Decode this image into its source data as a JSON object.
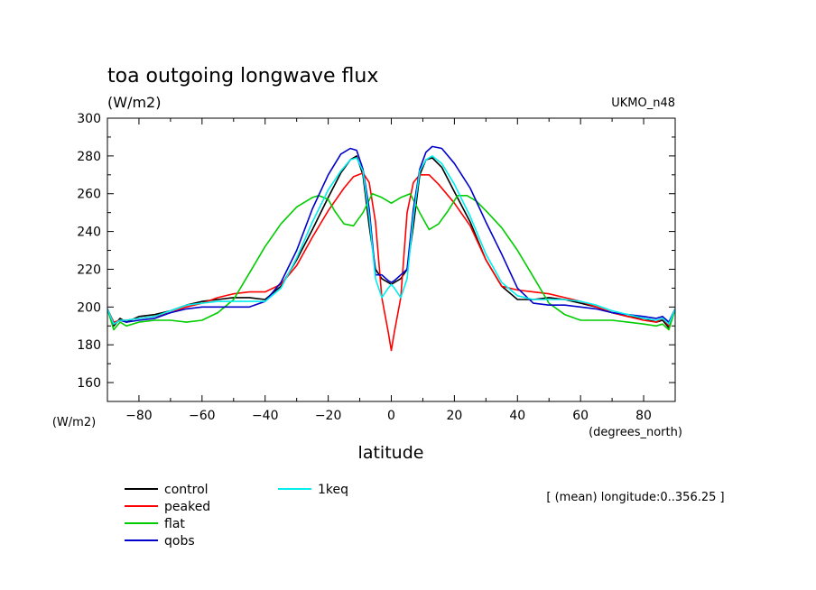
{
  "chart_data": {
    "type": "line",
    "title": "toa outgoing longwave flux",
    "units_label": "(W/m2)",
    "model_label": "UKMO_n48",
    "ylabel": "(W/m2)",
    "xlabel": "latitude",
    "x_units": "(degrees_north)",
    "footnote": "[ (mean) longitude:0..356.25 ]",
    "xlim": [
      -90,
      90
    ],
    "ylim": [
      150,
      300
    ],
    "xticks": [
      -80,
      -60,
      -40,
      -20,
      0,
      20,
      40,
      60,
      80
    ],
    "yticks": [
      160,
      180,
      200,
      220,
      240,
      260,
      280,
      300
    ],
    "grid": false,
    "legend_position": "bottom-left",
    "series": [
      {
        "name": "control",
        "color": "#000000",
        "points": [
          [
            -90,
            199
          ],
          [
            -88,
            190
          ],
          [
            -86,
            194
          ],
          [
            -84,
            192
          ],
          [
            -80,
            195
          ],
          [
            -75,
            196
          ],
          [
            -70,
            198
          ],
          [
            -65,
            201
          ],
          [
            -60,
            203
          ],
          [
            -55,
            204
          ],
          [
            -50,
            205
          ],
          [
            -45,
            205
          ],
          [
            -40,
            204
          ],
          [
            -35,
            211
          ],
          [
            -30,
            225
          ],
          [
            -25,
            241
          ],
          [
            -20,
            258
          ],
          [
            -16,
            271
          ],
          [
            -13,
            278
          ],
          [
            -11,
            280
          ],
          [
            -9,
            270
          ],
          [
            -7,
            243
          ],
          [
            -5,
            220
          ],
          [
            -3,
            215
          ],
          [
            -1,
            213
          ],
          [
            0,
            212
          ],
          [
            1,
            213
          ],
          [
            3,
            215
          ],
          [
            5,
            220
          ],
          [
            7,
            243
          ],
          [
            9,
            270
          ],
          [
            11,
            278
          ],
          [
            13,
            279
          ],
          [
            16,
            274
          ],
          [
            20,
            261
          ],
          [
            25,
            245
          ],
          [
            30,
            225
          ],
          [
            35,
            211
          ],
          [
            40,
            204
          ],
          [
            45,
            204
          ],
          [
            50,
            205
          ],
          [
            55,
            204
          ],
          [
            60,
            202
          ],
          [
            65,
            200
          ],
          [
            70,
            197
          ],
          [
            75,
            195
          ],
          [
            80,
            194
          ],
          [
            84,
            192
          ],
          [
            86,
            193
          ],
          [
            88,
            189
          ],
          [
            90,
            199
          ]
        ]
      },
      {
        "name": "peaked",
        "color": "#ff0000",
        "points": [
          [
            -90,
            199
          ],
          [
            -88,
            192
          ],
          [
            -86,
            193
          ],
          [
            -84,
            193
          ],
          [
            -80,
            194
          ],
          [
            -75,
            195
          ],
          [
            -70,
            197
          ],
          [
            -65,
            200
          ],
          [
            -60,
            202
          ],
          [
            -55,
            205
          ],
          [
            -50,
            207
          ],
          [
            -45,
            208
          ],
          [
            -40,
            208
          ],
          [
            -35,
            212
          ],
          [
            -30,
            222
          ],
          [
            -25,
            237
          ],
          [
            -20,
            251
          ],
          [
            -15,
            263
          ],
          [
            -12,
            269
          ],
          [
            -9,
            271
          ],
          [
            -7,
            266
          ],
          [
            -5,
            245
          ],
          [
            -3,
            205
          ],
          [
            -1,
            187
          ],
          [
            0,
            177
          ],
          [
            1,
            187
          ],
          [
            3,
            205
          ],
          [
            5,
            250
          ],
          [
            7,
            266
          ],
          [
            9,
            270
          ],
          [
            12,
            270
          ],
          [
            15,
            265
          ],
          [
            20,
            255
          ],
          [
            25,
            243
          ],
          [
            30,
            225
          ],
          [
            35,
            211
          ],
          [
            40,
            209
          ],
          [
            45,
            208
          ],
          [
            50,
            207
          ],
          [
            55,
            205
          ],
          [
            60,
            203
          ],
          [
            65,
            200
          ],
          [
            70,
            197
          ],
          [
            75,
            195
          ],
          [
            80,
            193
          ],
          [
            84,
            192
          ],
          [
            86,
            194
          ],
          [
            88,
            190
          ],
          [
            90,
            199
          ]
        ]
      },
      {
        "name": "flat",
        "color": "#00cc00",
        "points": [
          [
            -90,
            199
          ],
          [
            -88,
            188
          ],
          [
            -86,
            192
          ],
          [
            -84,
            190
          ],
          [
            -80,
            192
          ],
          [
            -75,
            193
          ],
          [
            -70,
            193
          ],
          [
            -65,
            192
          ],
          [
            -60,
            193
          ],
          [
            -55,
            197
          ],
          [
            -50,
            204
          ],
          [
            -45,
            218
          ],
          [
            -40,
            232
          ],
          [
            -35,
            244
          ],
          [
            -30,
            253
          ],
          [
            -25,
            258
          ],
          [
            -23,
            259
          ],
          [
            -20,
            257
          ],
          [
            -18,
            251
          ],
          [
            -15,
            244
          ],
          [
            -12,
            243
          ],
          [
            -9,
            250
          ],
          [
            -6,
            260
          ],
          [
            -3,
            258
          ],
          [
            0,
            255
          ],
          [
            3,
            258
          ],
          [
            6,
            260
          ],
          [
            9,
            250
          ],
          [
            12,
            241
          ],
          [
            15,
            244
          ],
          [
            18,
            251
          ],
          [
            21,
            259
          ],
          [
            24,
            259
          ],
          [
            27,
            256
          ],
          [
            30,
            251
          ],
          [
            35,
            242
          ],
          [
            40,
            230
          ],
          [
            45,
            216
          ],
          [
            50,
            202
          ],
          [
            55,
            196
          ],
          [
            60,
            193
          ],
          [
            65,
            193
          ],
          [
            70,
            193
          ],
          [
            75,
            192
          ],
          [
            80,
            191
          ],
          [
            84,
            190
          ],
          [
            86,
            191
          ],
          [
            88,
            188
          ],
          [
            90,
            199
          ]
        ]
      },
      {
        "name": "qobs",
        "color": "#0000cc",
        "points": [
          [
            -90,
            199
          ],
          [
            -88,
            191
          ],
          [
            -86,
            193
          ],
          [
            -84,
            192
          ],
          [
            -80,
            193
          ],
          [
            -75,
            194
          ],
          [
            -70,
            197
          ],
          [
            -65,
            199
          ],
          [
            -60,
            200
          ],
          [
            -55,
            200
          ],
          [
            -50,
            200
          ],
          [
            -45,
            200
          ],
          [
            -40,
            203
          ],
          [
            -35,
            213
          ],
          [
            -30,
            230
          ],
          [
            -25,
            252
          ],
          [
            -20,
            270
          ],
          [
            -16,
            281
          ],
          [
            -13,
            284
          ],
          [
            -11,
            283
          ],
          [
            -9,
            273
          ],
          [
            -7,
            252
          ],
          [
            -5,
            217
          ],
          [
            -3,
            217
          ],
          [
            -1,
            214
          ],
          [
            0,
            213
          ],
          [
            1,
            214
          ],
          [
            3,
            217
          ],
          [
            5,
            220
          ],
          [
            7,
            252
          ],
          [
            9,
            273
          ],
          [
            11,
            282
          ],
          [
            13,
            285
          ],
          [
            16,
            284
          ],
          [
            20,
            276
          ],
          [
            25,
            263
          ],
          [
            30,
            245
          ],
          [
            35,
            228
          ],
          [
            40,
            210
          ],
          [
            45,
            202
          ],
          [
            50,
            201
          ],
          [
            55,
            201
          ],
          [
            60,
            200
          ],
          [
            65,
            199
          ],
          [
            70,
            197
          ],
          [
            75,
            196
          ],
          [
            80,
            195
          ],
          [
            84,
            194
          ],
          [
            86,
            195
          ],
          [
            88,
            192
          ],
          [
            90,
            199
          ]
        ]
      },
      {
        "name": "1keq",
        "color": "#00eeee",
        "points": [
          [
            -90,
            199
          ],
          [
            -88,
            191
          ],
          [
            -86,
            193
          ],
          [
            -84,
            193
          ],
          [
            -80,
            194
          ],
          [
            -75,
            195
          ],
          [
            -70,
            198
          ],
          [
            -65,
            201
          ],
          [
            -60,
            202
          ],
          [
            -55,
            203
          ],
          [
            -50,
            203
          ],
          [
            -45,
            203
          ],
          [
            -40,
            203
          ],
          [
            -35,
            210
          ],
          [
            -30,
            226
          ],
          [
            -25,
            245
          ],
          [
            -20,
            262
          ],
          [
            -16,
            272
          ],
          [
            -13,
            278
          ],
          [
            -11,
            279
          ],
          [
            -9,
            272
          ],
          [
            -7,
            248
          ],
          [
            -5,
            215
          ],
          [
            -3,
            205
          ],
          [
            -1,
            210
          ],
          [
            0,
            212
          ],
          [
            1,
            210
          ],
          [
            3,
            205
          ],
          [
            5,
            215
          ],
          [
            7,
            248
          ],
          [
            9,
            272
          ],
          [
            11,
            278
          ],
          [
            13,
            280
          ],
          [
            16,
            276
          ],
          [
            20,
            265
          ],
          [
            25,
            248
          ],
          [
            30,
            228
          ],
          [
            35,
            213
          ],
          [
            40,
            206
          ],
          [
            45,
            204
          ],
          [
            50,
            204
          ],
          [
            55,
            204
          ],
          [
            60,
            203
          ],
          [
            65,
            201
          ],
          [
            70,
            198
          ],
          [
            75,
            196
          ],
          [
            80,
            194
          ],
          [
            84,
            193
          ],
          [
            86,
            194
          ],
          [
            88,
            191
          ],
          [
            90,
            199
          ]
        ]
      }
    ]
  }
}
